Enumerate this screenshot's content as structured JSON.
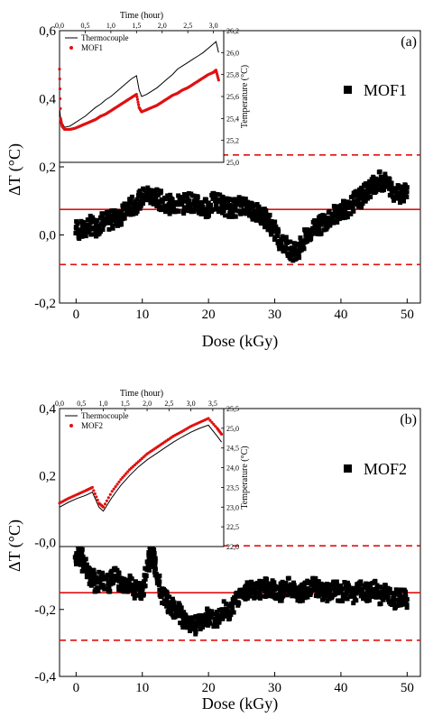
{
  "chart_data": [
    {
      "type": "scatter",
      "panel_label": "(a)",
      "xlabel": "Dose (kGy)",
      "ylabel": "ΔT (°C)",
      "xlim": [
        -2.5,
        52
      ],
      "ylim": [
        -0.2,
        0.6
      ],
      "xticks": [
        0,
        10,
        20,
        30,
        40,
        50
      ],
      "yticks": [
        -0.2,
        0.0,
        0.2,
        0.4,
        0.6
      ],
      "ytick_labels": [
        "-0,2",
        "0,0",
        "0,2",
        "0,4",
        "0,6"
      ],
      "legend": {
        "label": "MOF1",
        "position": "right"
      },
      "reference_lines": {
        "mean": 0.075,
        "upper": 0.235,
        "lower": -0.087,
        "color": "#e01010"
      },
      "series": [
        {
          "name": "MOF1",
          "marker": "square",
          "color": "#000000",
          "points": [
            [
              0.0,
              0.02
            ],
            [
              1.0,
              0.01
            ],
            [
              2.0,
              0.03
            ],
            [
              3.0,
              0.02
            ],
            [
              4.0,
              0.04
            ],
            [
              5.0,
              0.04
            ],
            [
              6.0,
              0.05
            ],
            [
              7.0,
              0.06
            ],
            [
              8.0,
              0.08
            ],
            [
              9.0,
              0.09
            ],
            [
              10.0,
              0.11
            ],
            [
              11.0,
              0.12
            ],
            [
              12.0,
              0.11
            ],
            [
              13.0,
              0.1
            ],
            [
              14.0,
              0.09
            ],
            [
              15.0,
              0.09
            ],
            [
              16.0,
              0.09
            ],
            [
              17.0,
              0.1
            ],
            [
              18.0,
              0.09
            ],
            [
              19.0,
              0.08
            ],
            [
              20.0,
              0.08
            ],
            [
              21.0,
              0.1
            ],
            [
              22.0,
              0.09
            ],
            [
              23.0,
              0.08
            ],
            [
              24.0,
              0.08
            ],
            [
              25.0,
              0.09
            ],
            [
              26.0,
              0.08
            ],
            [
              27.0,
              0.07
            ],
            [
              28.0,
              0.06
            ],
            [
              29.0,
              0.04
            ],
            [
              30.0,
              0.01
            ],
            [
              31.0,
              -0.02
            ],
            [
              32.0,
              -0.04
            ],
            [
              33.0,
              -0.05
            ],
            [
              34.0,
              -0.03
            ],
            [
              35.0,
              0.0
            ],
            [
              36.0,
              0.02
            ],
            [
              37.0,
              0.03
            ],
            [
              38.0,
              0.05
            ],
            [
              39.0,
              0.06
            ],
            [
              40.0,
              0.07
            ],
            [
              41.0,
              0.08
            ],
            [
              42.0,
              0.1
            ],
            [
              43.0,
              0.11
            ],
            [
              44.0,
              0.13
            ],
            [
              45.0,
              0.15
            ],
            [
              46.0,
              0.16
            ],
            [
              47.0,
              0.15
            ],
            [
              48.0,
              0.13
            ],
            [
              49.0,
              0.12
            ],
            [
              50.0,
              0.14
            ]
          ]
        }
      ],
      "inset": {
        "type": "line",
        "xlabel": "Time (hour)",
        "ylabel": "Temperature (°C)",
        "xlim": [
          0,
          3.2
        ],
        "xticks": [
          0,
          0.5,
          1.0,
          1.5,
          2.0,
          2.5,
          3.0
        ],
        "xtick_labels": [
          "0,0",
          "0,5",
          "1,0",
          "1,5",
          "2,0",
          "2,5",
          "3,0"
        ],
        "ylim": [
          25.0,
          26.2
        ],
        "yticks": [
          25.0,
          25.2,
          25.4,
          25.6,
          25.8,
          26.0,
          26.2
        ],
        "ytick_labels": [
          "25,0",
          "25,2",
          "25,4",
          "25,6",
          "25,8",
          "26,0",
          "26,2"
        ],
        "series": [
          {
            "name": "Thermocouple",
            "color": "#000000",
            "style": "line",
            "x": [
              0.0,
              0.02,
              0.05,
              0.1,
              0.2,
              0.3,
              0.4,
              0.5,
              0.6,
              0.7,
              0.8,
              0.9,
              1.0,
              1.1,
              1.2,
              1.3,
              1.4,
              1.5,
              1.55,
              1.6,
              1.7,
              1.8,
              1.9,
              2.0,
              2.1,
              2.2,
              2.3,
              2.4,
              2.5,
              2.6,
              2.7,
              2.8,
              2.9,
              3.0,
              3.05,
              3.1
            ],
            "y": [
              25.5,
              25.4,
              25.36,
              25.32,
              25.33,
              25.36,
              25.39,
              25.42,
              25.46,
              25.5,
              25.53,
              25.57,
              25.6,
              25.64,
              25.68,
              25.72,
              25.76,
              25.79,
              25.66,
              25.6,
              25.62,
              25.65,
              25.68,
              25.72,
              25.76,
              25.8,
              25.85,
              25.88,
              25.91,
              25.94,
              25.97,
              26.0,
              26.04,
              26.08,
              26.1,
              26.0
            ]
          },
          {
            "name": "MOF1",
            "color": "#e01010",
            "style": "dots",
            "x": [
              0.0,
              0.02,
              0.05,
              0.1,
              0.2,
              0.3,
              0.4,
              0.5,
              0.6,
              0.7,
              0.8,
              0.9,
              1.0,
              1.1,
              1.2,
              1.3,
              1.4,
              1.5,
              1.55,
              1.6,
              1.7,
              1.8,
              1.9,
              2.0,
              2.1,
              2.2,
              2.3,
              2.4,
              2.5,
              2.6,
              2.7,
              2.8,
              2.9,
              3.0,
              3.05,
              3.1
            ],
            "y": [
              25.85,
              25.4,
              25.33,
              25.3,
              25.3,
              25.31,
              25.33,
              25.35,
              25.37,
              25.39,
              25.42,
              25.44,
              25.47,
              25.5,
              25.53,
              25.56,
              25.59,
              25.62,
              25.5,
              25.46,
              25.48,
              25.5,
              25.52,
              25.55,
              25.58,
              25.61,
              25.63,
              25.66,
              25.68,
              25.71,
              25.74,
              25.77,
              25.8,
              25.82,
              25.84,
              25.75
            ]
          }
        ]
      }
    },
    {
      "type": "scatter",
      "panel_label": "(b)",
      "xlabel": "Dose (kGy)",
      "ylabel": "ΔT (°C)",
      "xlim": [
        -2.5,
        52
      ],
      "ylim": [
        -0.4,
        0.4
      ],
      "xticks": [
        0,
        10,
        20,
        30,
        40,
        50
      ],
      "yticks": [
        -0.4,
        -0.2,
        0.0,
        0.2,
        0.4
      ],
      "ytick_labels": [
        "-0,4",
        "-0,2",
        "-0,0",
        "0,2",
        "0,4"
      ],
      "legend": {
        "label": "MOF2",
        "position": "right"
      },
      "reference_lines": {
        "mean": -0.15,
        "upper": -0.01,
        "lower": -0.292,
        "color": "#e01010"
      },
      "series": [
        {
          "name": "MOF2",
          "marker": "square",
          "color": "#000000",
          "points": [
            [
              0.0,
              -0.04
            ],
            [
              0.5,
              -0.02
            ],
            [
              1.0,
              -0.06
            ],
            [
              2.0,
              -0.1
            ],
            [
              3.0,
              -0.12
            ],
            [
              4.0,
              -0.11
            ],
            [
              5.0,
              -0.12
            ],
            [
              6.0,
              -0.1
            ],
            [
              7.0,
              -0.13
            ],
            [
              8.0,
              -0.12
            ],
            [
              9.0,
              -0.14
            ],
            [
              10.0,
              -0.15
            ],
            [
              11.0,
              -0.05
            ],
            [
              11.5,
              -0.02
            ],
            [
              12.0,
              -0.08
            ],
            [
              13.0,
              -0.15
            ],
            [
              14.0,
              -0.18
            ],
            [
              15.0,
              -0.2
            ],
            [
              16.0,
              -0.22
            ],
            [
              17.0,
              -0.24
            ],
            [
              18.0,
              -0.25
            ],
            [
              19.0,
              -0.23
            ],
            [
              20.0,
              -0.22
            ],
            [
              21.0,
              -0.23
            ],
            [
              22.0,
              -0.2
            ],
            [
              23.0,
              -0.21
            ],
            [
              24.0,
              -0.18
            ],
            [
              25.0,
              -0.15
            ],
            [
              26.0,
              -0.14
            ],
            [
              27.0,
              -0.15
            ],
            [
              28.0,
              -0.14
            ],
            [
              29.0,
              -0.13
            ],
            [
              30.0,
              -0.14
            ],
            [
              31.0,
              -0.15
            ],
            [
              32.0,
              -0.13
            ],
            [
              33.0,
              -0.14
            ],
            [
              34.0,
              -0.15
            ],
            [
              35.0,
              -0.14
            ],
            [
              36.0,
              -0.13
            ],
            [
              37.0,
              -0.14
            ],
            [
              38.0,
              -0.15
            ],
            [
              39.0,
              -0.14
            ],
            [
              40.0,
              -0.15
            ],
            [
              41.0,
              -0.14
            ],
            [
              42.0,
              -0.16
            ],
            [
              43.0,
              -0.14
            ],
            [
              44.0,
              -0.15
            ],
            [
              45.0,
              -0.14
            ],
            [
              46.0,
              -0.16
            ],
            [
              47.0,
              -0.15
            ],
            [
              48.0,
              -0.17
            ],
            [
              49.0,
              -0.16
            ],
            [
              50.0,
              -0.17
            ]
          ]
        }
      ],
      "inset": {
        "type": "line",
        "xlabel": "Time (hour)",
        "ylabel": "Temperature (°C)",
        "xlim": [
          0,
          3.75
        ],
        "xticks": [
          0,
          0.5,
          1.0,
          1.5,
          2.0,
          2.5,
          3.0,
          3.5
        ],
        "xtick_labels": [
          "0,0",
          "0,5",
          "1,0",
          "1,5",
          "2,0",
          "2,5",
          "3,0",
          "3,5"
        ],
        "ylim": [
          22.0,
          25.5
        ],
        "yticks": [
          22.0,
          22.5,
          23.0,
          23.5,
          24.0,
          24.5,
          25.0,
          25.5
        ],
        "ytick_labels": [
          "22,0",
          "22,5",
          "23,0",
          "23,5",
          "24,0",
          "24,5",
          "25,0",
          "25,5"
        ],
        "series": [
          {
            "name": "Thermocouple",
            "color": "#000000",
            "style": "line",
            "x": [
              0.0,
              0.2,
              0.4,
              0.6,
              0.75,
              0.9,
              1.0,
              1.2,
              1.4,
              1.6,
              1.8,
              2.0,
              2.2,
              2.4,
              2.6,
              2.8,
              3.0,
              3.2,
              3.4,
              3.6,
              3.7
            ],
            "y": [
              23.0,
              23.12,
              23.22,
              23.3,
              23.38,
              23.0,
              22.9,
              23.25,
              23.55,
              23.8,
              24.02,
              24.2,
              24.35,
              24.5,
              24.65,
              24.78,
              24.9,
              25.0,
              25.08,
              24.8,
              24.65
            ]
          },
          {
            "name": "MOF2",
            "color": "#e01010",
            "style": "dots",
            "x": [
              0.0,
              0.2,
              0.4,
              0.6,
              0.75,
              0.9,
              1.0,
              1.2,
              1.4,
              1.6,
              1.8,
              2.0,
              2.2,
              2.4,
              2.6,
              2.8,
              3.0,
              3.2,
              3.4,
              3.6,
              3.7
            ],
            "y": [
              23.1,
              23.22,
              23.32,
              23.42,
              23.5,
              23.1,
              23.0,
              23.4,
              23.7,
              23.95,
              24.15,
              24.35,
              24.5,
              24.65,
              24.8,
              24.92,
              25.05,
              25.15,
              25.25,
              25.0,
              24.85
            ]
          }
        ]
      }
    }
  ]
}
